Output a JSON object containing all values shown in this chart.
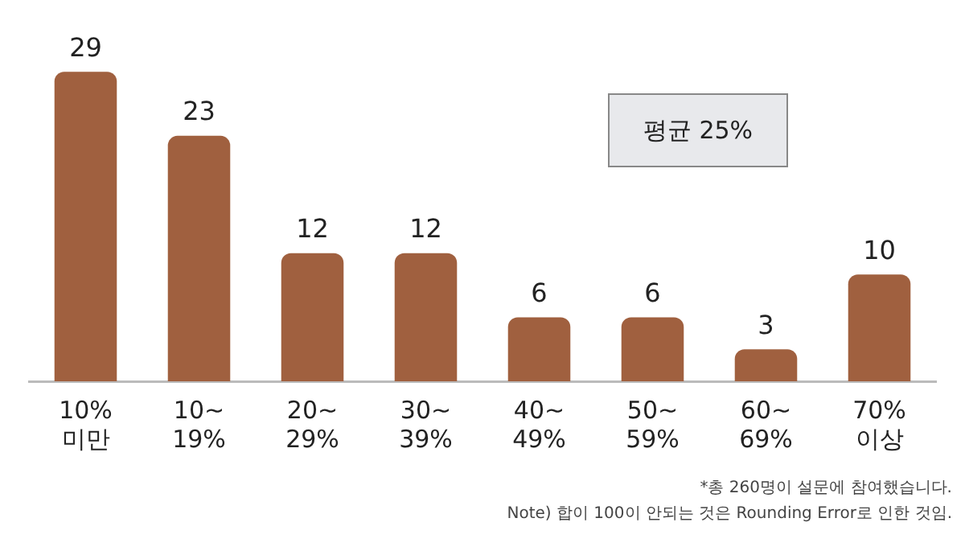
{
  "chart_data": {
    "type": "bar",
    "categories": [
      "10%\n미만",
      "10~\n19%",
      "20~\n29%",
      "30~\n39%",
      "40~\n49%",
      "50~\n59%",
      "60~\n69%",
      "70%\n이상"
    ],
    "values": [
      29,
      23,
      12,
      12,
      6,
      6,
      3,
      10
    ],
    "color": "#a0603f",
    "data_labels": true,
    "tick_labels": "x",
    "grid": false,
    "legend": false,
    "annotations": [
      "평균 25%",
      "*총 260명이 설문에 참여했습니다.",
      "Note) 합이 100이 안되는 것은 Rounding Error로 인한 것임."
    ]
  }
}
